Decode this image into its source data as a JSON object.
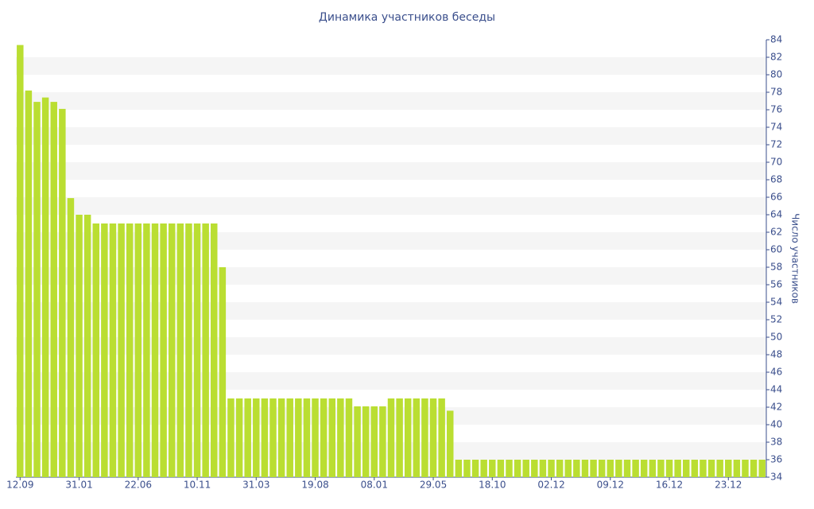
{
  "chart_data": {
    "type": "bar",
    "title": "Динамика участников беседы",
    "y_axis_label": "Число участников",
    "categories": [
      "12.09",
      null,
      null,
      null,
      null,
      null,
      null,
      "31.01",
      null,
      null,
      null,
      null,
      null,
      null,
      "22.06",
      null,
      null,
      null,
      null,
      null,
      null,
      "10.11",
      null,
      null,
      null,
      null,
      null,
      null,
      "31.03",
      null,
      null,
      null,
      null,
      null,
      null,
      "19.08",
      null,
      null,
      null,
      null,
      null,
      null,
      "08.01",
      null,
      null,
      null,
      null,
      null,
      null,
      "29.05",
      null,
      null,
      null,
      null,
      null,
      null,
      "18.10",
      null,
      null,
      null,
      null,
      null,
      null,
      "02.12",
      null,
      null,
      null,
      null,
      null,
      null,
      "09.12",
      null,
      null,
      null,
      null,
      null,
      null,
      "16.12",
      null,
      null,
      null,
      null,
      null,
      null,
      "23.12",
      null,
      null,
      null,
      null
    ],
    "values": [
      83.4,
      78.2,
      76.9,
      77.4,
      76.9,
      76.1,
      65.9,
      64,
      64,
      63,
      63,
      63,
      63,
      63,
      63,
      63,
      63,
      63,
      63,
      63,
      63,
      63,
      63,
      63,
      58,
      43,
      43,
      43,
      43,
      43,
      43,
      43,
      43,
      43,
      43,
      43,
      43,
      43,
      43,
      43,
      42.1,
      42.1,
      42.1,
      42.1,
      43,
      43,
      43,
      43,
      43,
      43,
      43,
      41.6,
      36,
      36,
      36,
      36,
      36,
      36,
      36,
      36,
      36,
      36,
      36,
      36,
      36,
      36,
      36,
      36,
      36,
      36,
      36,
      36,
      36,
      36,
      36,
      36,
      36,
      36,
      36,
      36,
      36,
      36,
      36,
      36,
      36,
      36,
      36,
      36,
      36
    ],
    "color": "#bade32",
    "ylim": [
      34,
      84
    ],
    "yticks": [
      34,
      36,
      38,
      40,
      42,
      44,
      46,
      48,
      50,
      52,
      54,
      56,
      58,
      60,
      62,
      64,
      66,
      68,
      70,
      72,
      74,
      76,
      78,
      80,
      82,
      84
    ],
    "grid": true
  }
}
